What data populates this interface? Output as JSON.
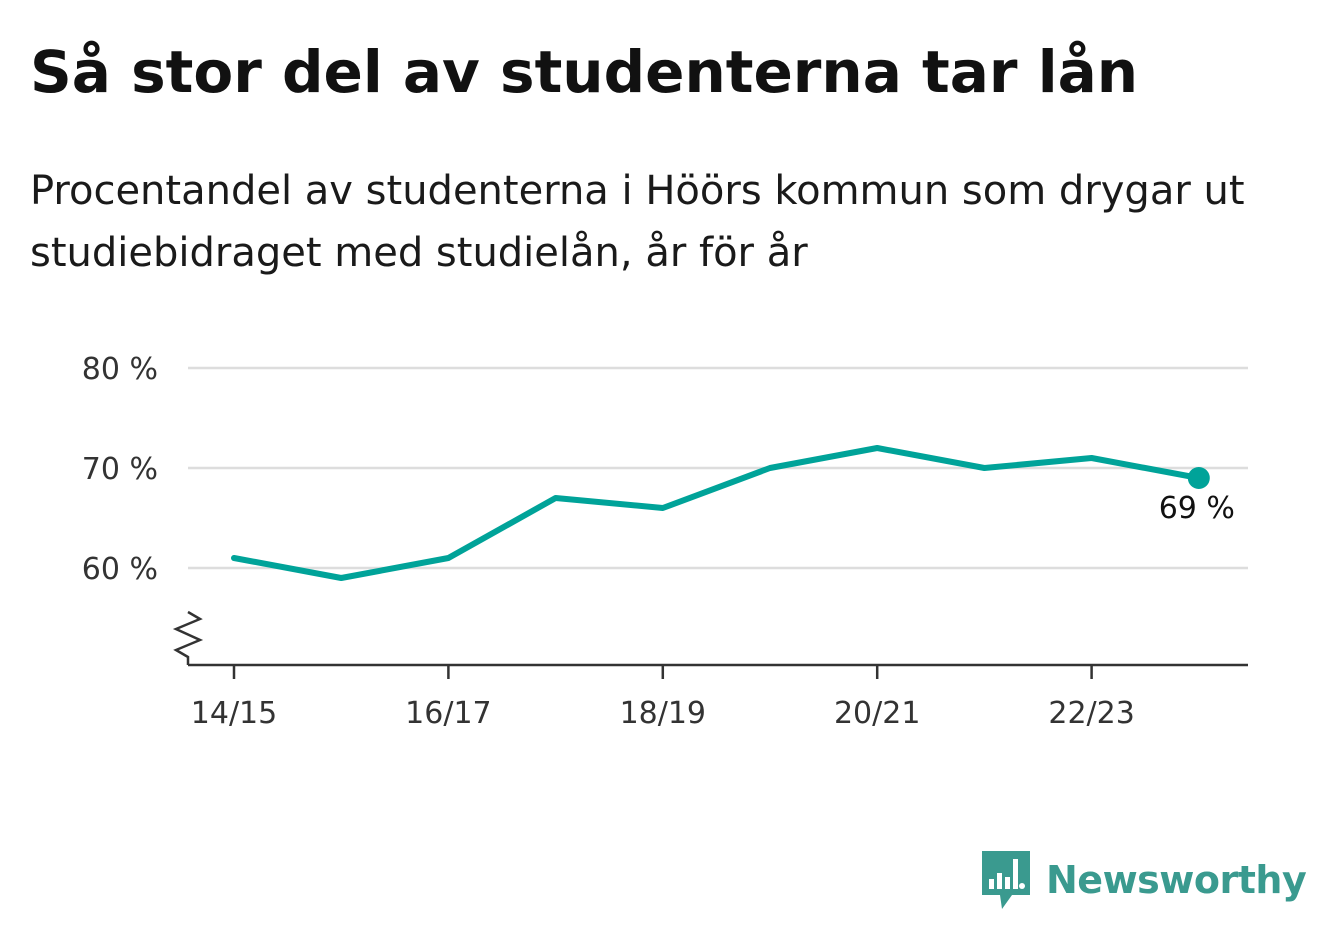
{
  "chart_data": {
    "type": "line",
    "title": "Så stor del av studenterna tar lån",
    "subtitle": "Procentandel av studenterna i Höörs kommun som drygar ut studiebidraget med studielån, år för år",
    "xlabel": "",
    "ylabel": "",
    "x": [
      "14/15",
      "15/16",
      "16/17",
      "17/18",
      "18/19",
      "19/20",
      "20/21",
      "21/22",
      "22/23",
      "23/24"
    ],
    "x_tick_labels": [
      "14/15",
      "16/17",
      "18/19",
      "20/21",
      "22/23"
    ],
    "y_tick_labels": [
      "80 %",
      "70 %",
      "60 %"
    ],
    "y_ticks": [
      80,
      70,
      60
    ],
    "ylim": [
      50,
      80
    ],
    "grid": true,
    "axis_break": true,
    "series": [
      {
        "values": [
          61,
          59,
          61,
          67,
          66,
          70,
          72,
          70,
          71,
          69
        ],
        "color": "#00a399"
      }
    ],
    "end_label": "69 %"
  },
  "colors": {
    "line": "#00a399",
    "grid": "#dddddd",
    "axis": "#333333",
    "brand": "#3a9a8f"
  },
  "branding": {
    "logo_text": "Newsworthy",
    "logo_icon": "newsworthy-bar-chart-icon"
  }
}
